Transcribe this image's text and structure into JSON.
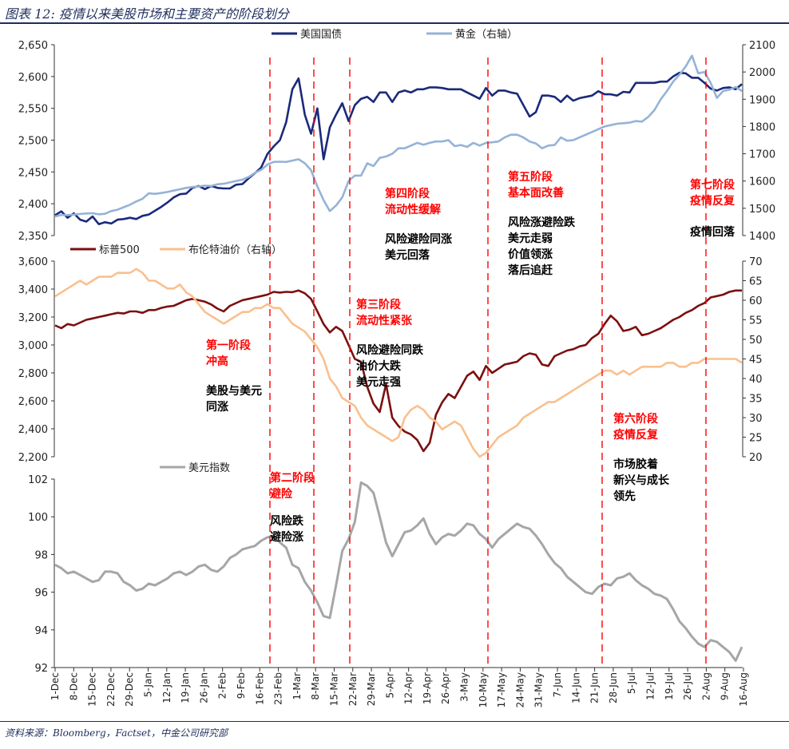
{
  "header": {
    "title": "图表 12: 疫情以来美股市场和主要资产的阶段划分"
  },
  "footer": {
    "source": "资料来源：Bloomberg，Factset，中金公司研究部"
  },
  "colors": {
    "treasury": "#1a2a7a",
    "gold": "#95b3d7",
    "sp500": "#7b1010",
    "brent": "#f9c08e",
    "dxy": "#a6a6a6",
    "phase": "#ff0000",
    "annotation": "#000000"
  },
  "chart_data": [
    {
      "type": "line",
      "panel": "top",
      "series": [
        {
          "name": "美国国债",
          "axis": "left",
          "values": [
            2382,
            2388,
            2378,
            2385,
            2375,
            2372,
            2380,
            2368,
            2371,
            2369,
            2375,
            2376,
            2378,
            2376,
            2381,
            2383,
            2389,
            2395,
            2402,
            2410,
            2415,
            2416,
            2425,
            2428,
            2423,
            2428,
            2425,
            2424,
            2424,
            2430,
            2431,
            2440,
            2448,
            2457,
            2478,
            2490,
            2500,
            2528,
            2580,
            2597,
            2540,
            2510,
            2550,
            2470,
            2520,
            2540,
            2558,
            2530,
            2555,
            2565,
            2568,
            2560,
            2575,
            2575,
            2560,
            2575,
            2578,
            2575,
            2580,
            2580,
            2583,
            2583,
            2582,
            2580,
            2580,
            2580,
            2575,
            2570,
            2565,
            2582,
            2570,
            2578,
            2578,
            2575,
            2573,
            2555,
            2537,
            2544,
            2570,
            2570,
            2568,
            2560,
            2570,
            2562,
            2566,
            2568,
            2570,
            2577,
            2572,
            2572,
            2570,
            2576,
            2575,
            2590,
            2590,
            2590,
            2590,
            2592,
            2592,
            2600,
            2606,
            2605,
            2598,
            2598,
            2590,
            2581,
            2578,
            2582,
            2583,
            2580,
            2588
          ]
        },
        {
          "name": "黄金（右轴）",
          "axis": "right",
          "values": [
            1470,
            1476,
            1475,
            1477,
            1479,
            1481,
            1482,
            1478,
            1480,
            1490,
            1495,
            1504,
            1513,
            1525,
            1535,
            1555,
            1553,
            1556,
            1560,
            1565,
            1570,
            1575,
            1578,
            1580,
            1583,
            1582,
            1588,
            1590,
            1595,
            1600,
            1605,
            1615,
            1630,
            1641,
            1660,
            1670,
            1671,
            1670,
            1675,
            1680,
            1665,
            1640,
            1580,
            1530,
            1490,
            1510,
            1540,
            1600,
            1620,
            1620,
            1665,
            1655,
            1685,
            1690,
            1700,
            1720,
            1720,
            1730,
            1740,
            1733,
            1740,
            1745,
            1745,
            1750,
            1728,
            1732,
            1725,
            1740,
            1730,
            1740,
            1742,
            1745,
            1760,
            1770,
            1770,
            1760,
            1745,
            1738,
            1720,
            1730,
            1732,
            1760,
            1748,
            1750,
            1760,
            1770,
            1780,
            1790,
            1800,
            1805,
            1810,
            1812,
            1814,
            1820,
            1818,
            1835,
            1860,
            1900,
            1930,
            1965,
            1990,
            2020,
            2060,
            1995,
            2000,
            1960,
            1905,
            1930,
            1935,
            1945,
            1930
          ]
        }
      ],
      "left_axis": {
        "ylim": [
          2350,
          2650
        ],
        "ticks": [
          "2,350",
          "2,400",
          "2,450",
          "2,500",
          "2,550",
          "2,600",
          "2,650"
        ]
      },
      "right_axis": {
        "ylim": [
          1400,
          2100
        ],
        "ticks": [
          "1400",
          "1500",
          "1600",
          "1700",
          "1800",
          "1900",
          "2000",
          "2100"
        ]
      },
      "legend": "top"
    },
    {
      "type": "line",
      "panel": "middle",
      "series": [
        {
          "name": "标普500",
          "axis": "left",
          "values": [
            3140,
            3120,
            3150,
            3140,
            3160,
            3180,
            3190,
            3200,
            3210,
            3220,
            3230,
            3225,
            3240,
            3240,
            3230,
            3250,
            3250,
            3265,
            3275,
            3280,
            3300,
            3320,
            3330,
            3320,
            3310,
            3290,
            3260,
            3240,
            3280,
            3300,
            3320,
            3330,
            3340,
            3350,
            3360,
            3380,
            3375,
            3380,
            3378,
            3390,
            3370,
            3330,
            3240,
            3150,
            3090,
            3130,
            3100,
            3000,
            2900,
            2880,
            2700,
            2580,
            2520,
            2720,
            2480,
            2420,
            2380,
            2360,
            2320,
            2240,
            2300,
            2500,
            2590,
            2650,
            2620,
            2700,
            2780,
            2810,
            2750,
            2850,
            2800,
            2830,
            2860,
            2870,
            2880,
            2920,
            2940,
            2930,
            2860,
            2850,
            2920,
            2940,
            2960,
            2970,
            2990,
            3000,
            3050,
            3080,
            3150,
            3210,
            3170,
            3100,
            3110,
            3130,
            3070,
            3080,
            3100,
            3120,
            3150,
            3180,
            3200,
            3230,
            3250,
            3280,
            3300,
            3340,
            3350,
            3360,
            3380,
            3390,
            3390
          ]
        },
        {
          "name": "布伦特油价（右轴）",
          "axis": "right",
          "values": [
            61,
            62,
            63,
            64,
            65,
            64,
            65,
            66,
            66,
            66,
            67,
            67,
            67,
            68,
            67,
            65,
            65,
            64,
            63,
            63,
            64,
            62,
            61,
            59,
            57,
            56,
            55,
            54,
            55,
            56,
            57,
            57,
            58,
            58,
            59,
            58,
            58,
            56,
            54,
            53,
            52,
            50,
            48,
            45,
            40,
            38,
            35,
            34,
            33,
            30,
            28,
            27,
            26,
            25,
            24,
            25,
            30,
            32,
            33,
            32,
            30,
            29,
            27,
            28,
            29,
            28,
            25,
            22,
            20,
            21,
            23,
            25,
            26,
            27,
            28,
            30,
            31,
            32,
            33,
            34,
            34,
            35,
            36,
            37,
            38,
            39,
            40,
            41,
            42,
            42,
            41,
            42,
            41,
            42,
            43,
            43,
            43,
            43,
            44,
            44,
            43,
            43,
            44,
            44,
            45,
            45,
            45,
            45,
            45,
            45,
            44
          ]
        }
      ],
      "left_axis": {
        "ylim": [
          2200,
          3600
        ],
        "ticks": [
          "2,200",
          "2,400",
          "2,600",
          "2,800",
          "3,000",
          "3,200",
          "3,400",
          "3,600"
        ]
      },
      "right_axis": {
        "ylim": [
          20,
          70
        ],
        "ticks": [
          "20",
          "25",
          "30",
          "35",
          "40",
          "45",
          "50",
          "55",
          "60",
          "65",
          "70"
        ]
      },
      "legend": "top"
    },
    {
      "type": "line",
      "panel": "bottom",
      "series": [
        {
          "name": "美元指数",
          "axis": "left",
          "values": [
            98.0,
            97.8,
            97.5,
            97.6,
            97.4,
            97.2,
            97.0,
            97.1,
            97.6,
            97.6,
            97.5,
            97.0,
            96.8,
            96.5,
            96.6,
            96.9,
            96.8,
            97.0,
            97.2,
            97.5,
            97.6,
            97.4,
            97.6,
            97.9,
            98.0,
            97.7,
            97.6,
            97.9,
            98.4,
            98.6,
            98.9,
            99.0,
            99.1,
            99.4,
            99.6,
            99.7,
            99.3,
            99.0,
            98.0,
            97.8,
            97.0,
            96.5,
            95.8,
            95.0,
            94.9,
            96.8,
            98.8,
            99.5,
            100.5,
            102.8,
            102.6,
            102.2,
            100.8,
            99.3,
            98.5,
            99.2,
            99.9,
            100.0,
            100.3,
            100.7,
            99.8,
            99.2,
            99.6,
            99.8,
            99.7,
            100.0,
            100.4,
            100.3,
            99.8,
            99.5,
            99.0,
            99.5,
            99.8,
            100.1,
            100.4,
            100.2,
            100.1,
            99.7,
            99.2,
            98.6,
            98.1,
            97.8,
            97.3,
            97.0,
            96.7,
            96.4,
            96.3,
            96.7,
            96.9,
            96.8,
            97.2,
            97.3,
            97.5,
            97.1,
            96.8,
            96.6,
            96.3,
            96.2,
            96.0,
            95.4,
            94.7,
            94.3,
            93.8,
            93.4,
            93.2,
            93.6,
            93.5,
            93.2,
            92.9,
            92.4,
            93.2
          ]
        }
      ],
      "left_axis": {
        "ylim": [
          92,
          103
        ],
        "ticks": [
          "92",
          "94",
          "96",
          "98",
          "100",
          "102"
        ]
      },
      "legend": "top-left"
    }
  ],
  "x_axis": {
    "tick_labels": [
      "1-Dec",
      "8-Dec",
      "15-Dec",
      "22-Dec",
      "29-Dec",
      "5-Jan",
      "12-Jan",
      "19-Jan",
      "26-Jan",
      "2-Feb",
      "9-Feb",
      "16-Feb",
      "23-Feb",
      "1-Mar",
      "8-Mar",
      "15-Mar",
      "22-Mar",
      "29-Mar",
      "5-Apr",
      "12-Apr",
      "19-Apr",
      "26-Apr",
      "3-May",
      "10-May",
      "17-May",
      "24-May",
      "31-May",
      "7-Jun",
      "14-Jun",
      "21-Jun",
      "28-Jun",
      "5-Jul",
      "12-Jul",
      "19-Jul",
      "26-Jul",
      "2-Aug",
      "9-Aug",
      "16-Aug"
    ],
    "phase_boundaries": [
      "23-Feb",
      "8-Mar",
      "22-Mar",
      "14-May",
      "28-Jun",
      "9-Aug"
    ]
  },
  "phases": [
    {
      "title": "第一阶段",
      "subtitle": "冲高",
      "notes": [
        "美股与美元",
        "同涨"
      ]
    },
    {
      "title": "第二阶段",
      "subtitle": "避险",
      "notes": [
        "风险跌",
        "避险涨"
      ]
    },
    {
      "title": "第三阶段",
      "subtitle": "流动性紧张",
      "notes": [
        "风险避险同跌",
        "油价大跌",
        "美元走强"
      ]
    },
    {
      "title": "第四阶段",
      "subtitle": "流动性缓解",
      "notes": [
        "风险避险同涨",
        "美元回落"
      ]
    },
    {
      "title": "第五阶段",
      "subtitle": "基本面改善",
      "notes": [
        "风险涨避险跌",
        "美元走弱",
        "价值领涨",
        "落后追赶"
      ]
    },
    {
      "title": "第六阶段",
      "subtitle": "疫情反复",
      "notes": [
        "市场胶着",
        "新兴与成长",
        "领先"
      ]
    },
    {
      "title": "第七阶段",
      "subtitle": "疫情反复",
      "notes": [
        "疫情回落"
      ]
    }
  ]
}
